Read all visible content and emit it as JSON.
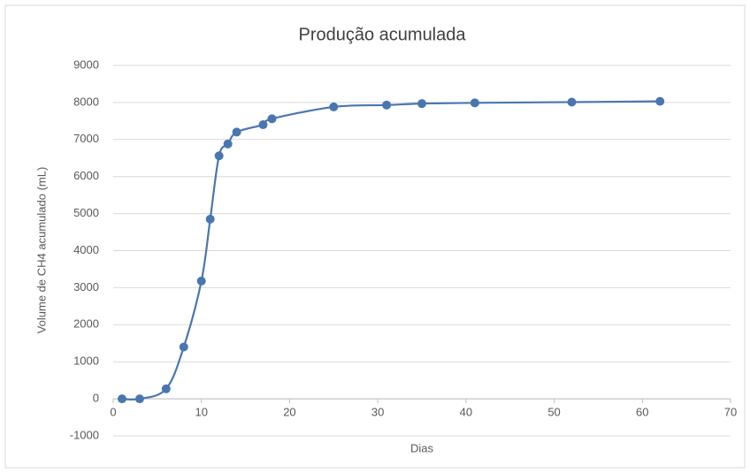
{
  "chart_data": {
    "type": "scatter",
    "title": "Produção acumulada",
    "x_label": "Dias",
    "y_label": "Volume de CH4 acumulado (mL)",
    "x": [
      1,
      3,
      6,
      8,
      10,
      11,
      12,
      13,
      14,
      17,
      18,
      25,
      31,
      35,
      41,
      52,
      62
    ],
    "values": [
      0,
      0,
      270,
      1400,
      3180,
      4850,
      6560,
      6880,
      7200,
      7400,
      7560,
      7880,
      7930,
      7970,
      7990,
      8010,
      8030
    ],
    "color": "#4a76b0",
    "smooth": true,
    "xlim": [
      0,
      70
    ],
    "xticks": [
      0,
      10,
      20,
      30,
      40,
      50,
      60,
      70
    ],
    "ylim": [
      -1000,
      9000
    ],
    "yticks": [
      -1000,
      0,
      1000,
      2000,
      3000,
      4000,
      5000,
      6000,
      7000,
      8000,
      9000
    ],
    "grid": true
  }
}
